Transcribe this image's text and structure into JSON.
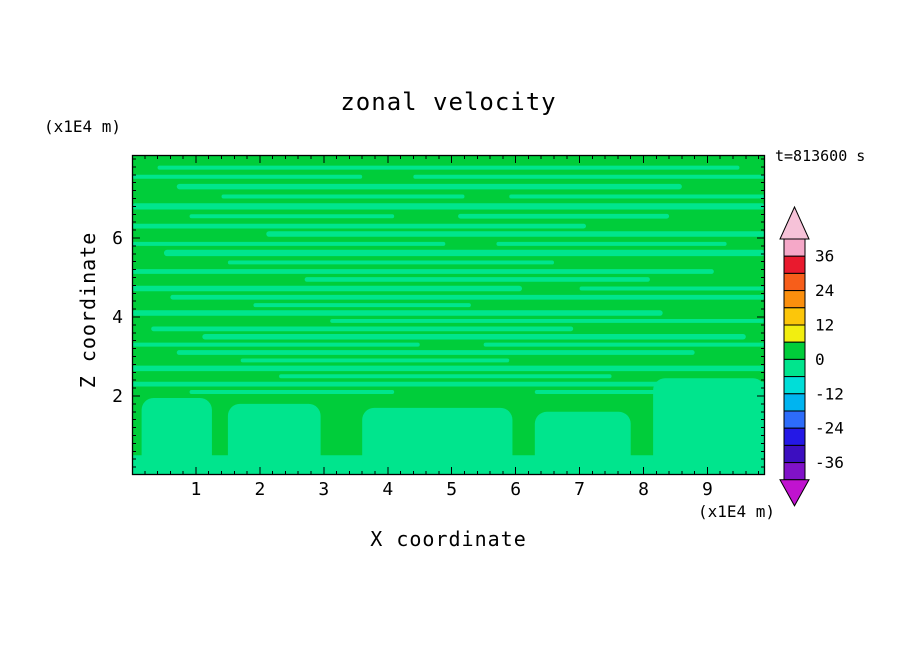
{
  "title": "zonal velocity",
  "timestamp": "t=813600 s",
  "axes": {
    "x_title": "X coordinate",
    "x_unit": "(x1E4 m)",
    "y_title": "Z coordinate",
    "y_unit": "(x1E4 m)",
    "x_ticks": [
      1,
      2,
      3,
      4,
      5,
      6,
      7,
      8,
      9
    ],
    "y_ticks": [
      2,
      4,
      6
    ],
    "x_range": [
      0,
      9.9
    ],
    "y_range": [
      0,
      8.1
    ],
    "x_minor_step": 0.2,
    "y_minor_step": 0.2
  },
  "colorbar": {
    "labels": [
      36,
      24,
      12,
      0,
      -12,
      -24,
      -36
    ],
    "segments": [
      {
        "range": [
          36,
          42
        ],
        "color": "#f5a8c8"
      },
      {
        "range": [
          30,
          36
        ],
        "color": "#e91a2e"
      },
      {
        "range": [
          24,
          30
        ],
        "color": "#f75e1a"
      },
      {
        "range": [
          18,
          24
        ],
        "color": "#fb8f0d"
      },
      {
        "range": [
          12,
          18
        ],
        "color": "#fcc60a"
      },
      {
        "range": [
          6,
          12
        ],
        "color": "#f2ee10"
      },
      {
        "range": [
          0,
          6
        ],
        "color": "#00cd3a"
      },
      {
        "range": [
          -6,
          0
        ],
        "color": "#00e58d"
      },
      {
        "range": [
          -12,
          -6
        ],
        "color": "#00ded8"
      },
      {
        "range": [
          -18,
          -12
        ],
        "color": "#00b4f0"
      },
      {
        "range": [
          -24,
          -18
        ],
        "color": "#2d6cfa"
      },
      {
        "range": [
          -30,
          -24
        ],
        "color": "#2418e6"
      },
      {
        "range": [
          -36,
          -30
        ],
        "color": "#3c0ec0"
      },
      {
        "range": [
          -42,
          -36
        ],
        "color": "#8012c8"
      }
    ],
    "over_arrow_color": "#f6c2d8",
    "under_arrow_color": "#c013cf"
  },
  "chart_data": {
    "type": "heatmap",
    "title": "zonal velocity",
    "xlabel": "X coordinate (x1E4 m)",
    "ylabel": "Z coordinate (x1E4 m)",
    "time_label": "t=813600 s",
    "xlim": [
      0,
      9.9
    ],
    "ylim": [
      0,
      8.1
    ],
    "contour_interval": 6,
    "value_band_shown": [
      -6,
      6
    ],
    "positive_band_color": "#00cd3a",
    "negative_band_color": "#00e58d",
    "description": "Filled contour field dominated by the 0..6 band (green) with thin horizontal -6..0 streaks (light green) and broader -6..0 pools along the bottom boundary",
    "streaks": [
      [
        7.78,
        0.4,
        9.5,
        0.1
      ],
      [
        7.55,
        0.0,
        3.6,
        0.1
      ],
      [
        7.55,
        4.4,
        9.9,
        0.1
      ],
      [
        7.3,
        0.7,
        8.6,
        0.14
      ],
      [
        7.05,
        1.4,
        5.2,
        0.1
      ],
      [
        7.05,
        5.9,
        9.9,
        0.1
      ],
      [
        6.8,
        0.0,
        9.9,
        0.16
      ],
      [
        6.55,
        0.9,
        4.1,
        0.1
      ],
      [
        6.55,
        5.1,
        8.4,
        0.12
      ],
      [
        6.3,
        0.0,
        7.1,
        0.12
      ],
      [
        6.1,
        2.1,
        9.9,
        0.14
      ],
      [
        5.85,
        0.0,
        4.9,
        0.1
      ],
      [
        5.85,
        5.7,
        9.3,
        0.1
      ],
      [
        5.62,
        0.5,
        9.9,
        0.16
      ],
      [
        5.38,
        1.5,
        6.6,
        0.1
      ],
      [
        5.15,
        0.0,
        9.1,
        0.12
      ],
      [
        4.95,
        2.7,
        8.1,
        0.12
      ],
      [
        4.72,
        0.0,
        6.1,
        0.14
      ],
      [
        4.72,
        7.0,
        9.9,
        0.1
      ],
      [
        4.5,
        0.6,
        9.9,
        0.12
      ],
      [
        4.3,
        1.9,
        5.3,
        0.1
      ],
      [
        4.1,
        0.0,
        8.3,
        0.14
      ],
      [
        3.9,
        3.1,
        9.9,
        0.1
      ],
      [
        3.7,
        0.3,
        6.9,
        0.12
      ],
      [
        3.5,
        1.1,
        9.6,
        0.14
      ],
      [
        3.3,
        0.0,
        4.5,
        0.1
      ],
      [
        3.3,
        5.5,
        9.9,
        0.1
      ],
      [
        3.1,
        0.7,
        8.8,
        0.12
      ],
      [
        2.9,
        1.7,
        5.9,
        0.1
      ],
      [
        2.7,
        0.0,
        9.9,
        0.14
      ],
      [
        2.5,
        2.3,
        7.5,
        0.1
      ],
      [
        2.3,
        0.0,
        9.9,
        0.12
      ],
      [
        2.1,
        0.9,
        4.1,
        0.1
      ],
      [
        2.1,
        6.3,
        9.9,
        0.1
      ]
    ],
    "bottom_base": [
      0,
      0.5
    ],
    "bottom_blobs": [
      [
        0.15,
        1.25,
        1.95
      ],
      [
        1.5,
        2.95,
        1.8
      ],
      [
        3.6,
        5.95,
        1.7
      ],
      [
        6.3,
        7.8,
        1.6
      ],
      [
        8.15,
        9.9,
        2.45
      ]
    ]
  }
}
